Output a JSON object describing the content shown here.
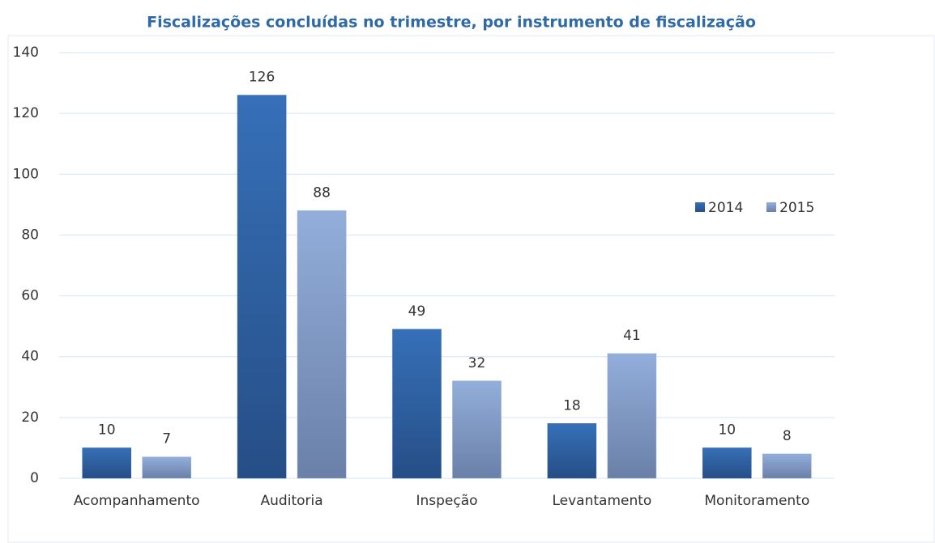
{
  "chart_data": {
    "type": "bar",
    "title": "Fiscalizações concluídas no trimestre, por instrumento de fiscalização",
    "categories": [
      "Acompanhamento",
      "Auditoria",
      "Inspeção",
      "Levantamento",
      "Monitoramento"
    ],
    "series": [
      {
        "name": "2014",
        "color": "#2e62a6",
        "values": [
          10,
          126,
          49,
          18,
          10
        ]
      },
      {
        "name": "2015",
        "color": "#8da7d3",
        "values": [
          7,
          88,
          32,
          41,
          8
        ]
      }
    ],
    "ylim": [
      0,
      140
    ],
    "yticks": [
      0,
      20,
      40,
      60,
      80,
      100,
      120,
      140
    ],
    "grid": true
  }
}
